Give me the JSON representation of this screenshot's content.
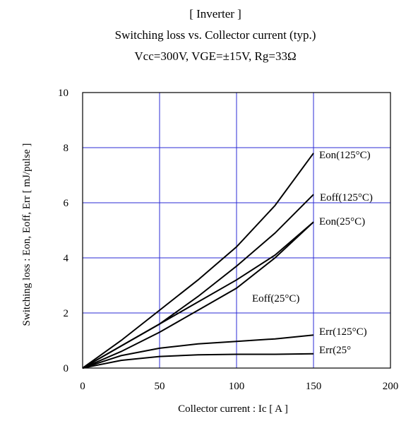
{
  "chart_data": {
    "type": "line",
    "title_lines": [
      "[ Inverter ]",
      "Switching loss  vs.  Collector current  (typ.)",
      "Vcc=300V, VGE=±15V, Rg=33Ω"
    ],
    "xlabel": "Collector current  :  Ic  [ A ]",
    "ylabel": "Switching loss  :  Eon, Eoff, Err  [ mJ/pulse ]",
    "xlim": [
      0,
      200
    ],
    "ylim": [
      0,
      10
    ],
    "x_ticks": [
      "0",
      "50",
      "100",
      "150",
      "200"
    ],
    "y_ticks": [
      "0",
      "2",
      "4",
      "6",
      "8",
      "10"
    ],
    "grid": "on",
    "series": [
      {
        "name": "Eon(125°C)",
        "x": [
          0,
          25,
          50,
          75,
          100,
          125,
          150
        ],
        "y": [
          0,
          1.0,
          2.1,
          3.2,
          4.4,
          5.9,
          7.8
        ]
      },
      {
        "name": "Eoff(125°C)",
        "x": [
          0,
          25,
          50,
          75,
          100,
          125,
          150
        ],
        "y": [
          0,
          0.8,
          1.6,
          2.6,
          3.7,
          4.9,
          6.3
        ]
      },
      {
        "name": "Eon(25°C)",
        "x": [
          0,
          25,
          50,
          75,
          100,
          125,
          150
        ],
        "y": [
          0,
          0.6,
          1.3,
          2.1,
          2.9,
          4.0,
          5.3
        ]
      },
      {
        "name": "Eoff(25°C)",
        "x": [
          0,
          25,
          50,
          75,
          100,
          125,
          150
        ],
        "y": [
          0,
          0.8,
          1.6,
          2.4,
          3.2,
          4.1,
          5.3
        ]
      },
      {
        "name": "Err(125°C)",
        "x": [
          0,
          25,
          50,
          75,
          100,
          125,
          150
        ],
        "y": [
          0,
          0.45,
          0.72,
          0.88,
          0.97,
          1.06,
          1.2
        ]
      },
      {
        "name": "Err(25°",
        "x": [
          0,
          25,
          50,
          75,
          100,
          125,
          150
        ],
        "y": [
          0,
          0.28,
          0.42,
          0.48,
          0.5,
          0.5,
          0.52
        ]
      }
    ]
  }
}
